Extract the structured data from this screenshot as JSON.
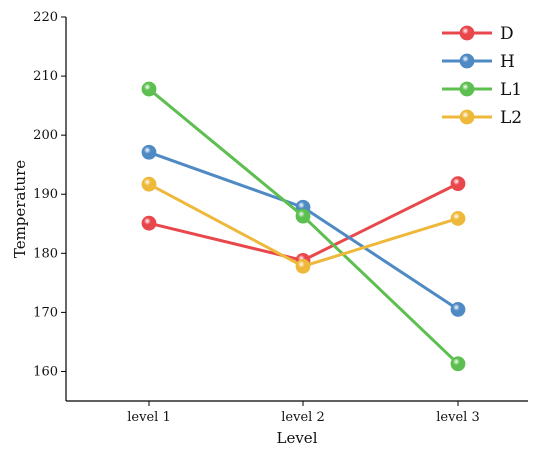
{
  "chart_data": {
    "type": "line",
    "xlabel": "Level",
    "ylabel": "Temperature",
    "categories": [
      "level 1",
      "level 2",
      "level 3"
    ],
    "ylim": [
      155,
      220
    ],
    "yticks": [
      160,
      170,
      180,
      190,
      200,
      210,
      220
    ],
    "grid": false,
    "legend_position": "top-right",
    "series": [
      {
        "name": "D",
        "color": "#e8474c",
        "values": [
          185.1,
          178.8,
          191.8
        ]
      },
      {
        "name": "H",
        "color": "#4f8ac4",
        "values": [
          197.1,
          187.8,
          170.5
        ]
      },
      {
        "name": "L1",
        "color": "#5cbf4f",
        "values": [
          207.8,
          186.3,
          161.3
        ]
      },
      {
        "name": "L2",
        "color": "#eeb93a",
        "values": [
          191.7,
          177.8,
          185.9
        ]
      }
    ]
  }
}
